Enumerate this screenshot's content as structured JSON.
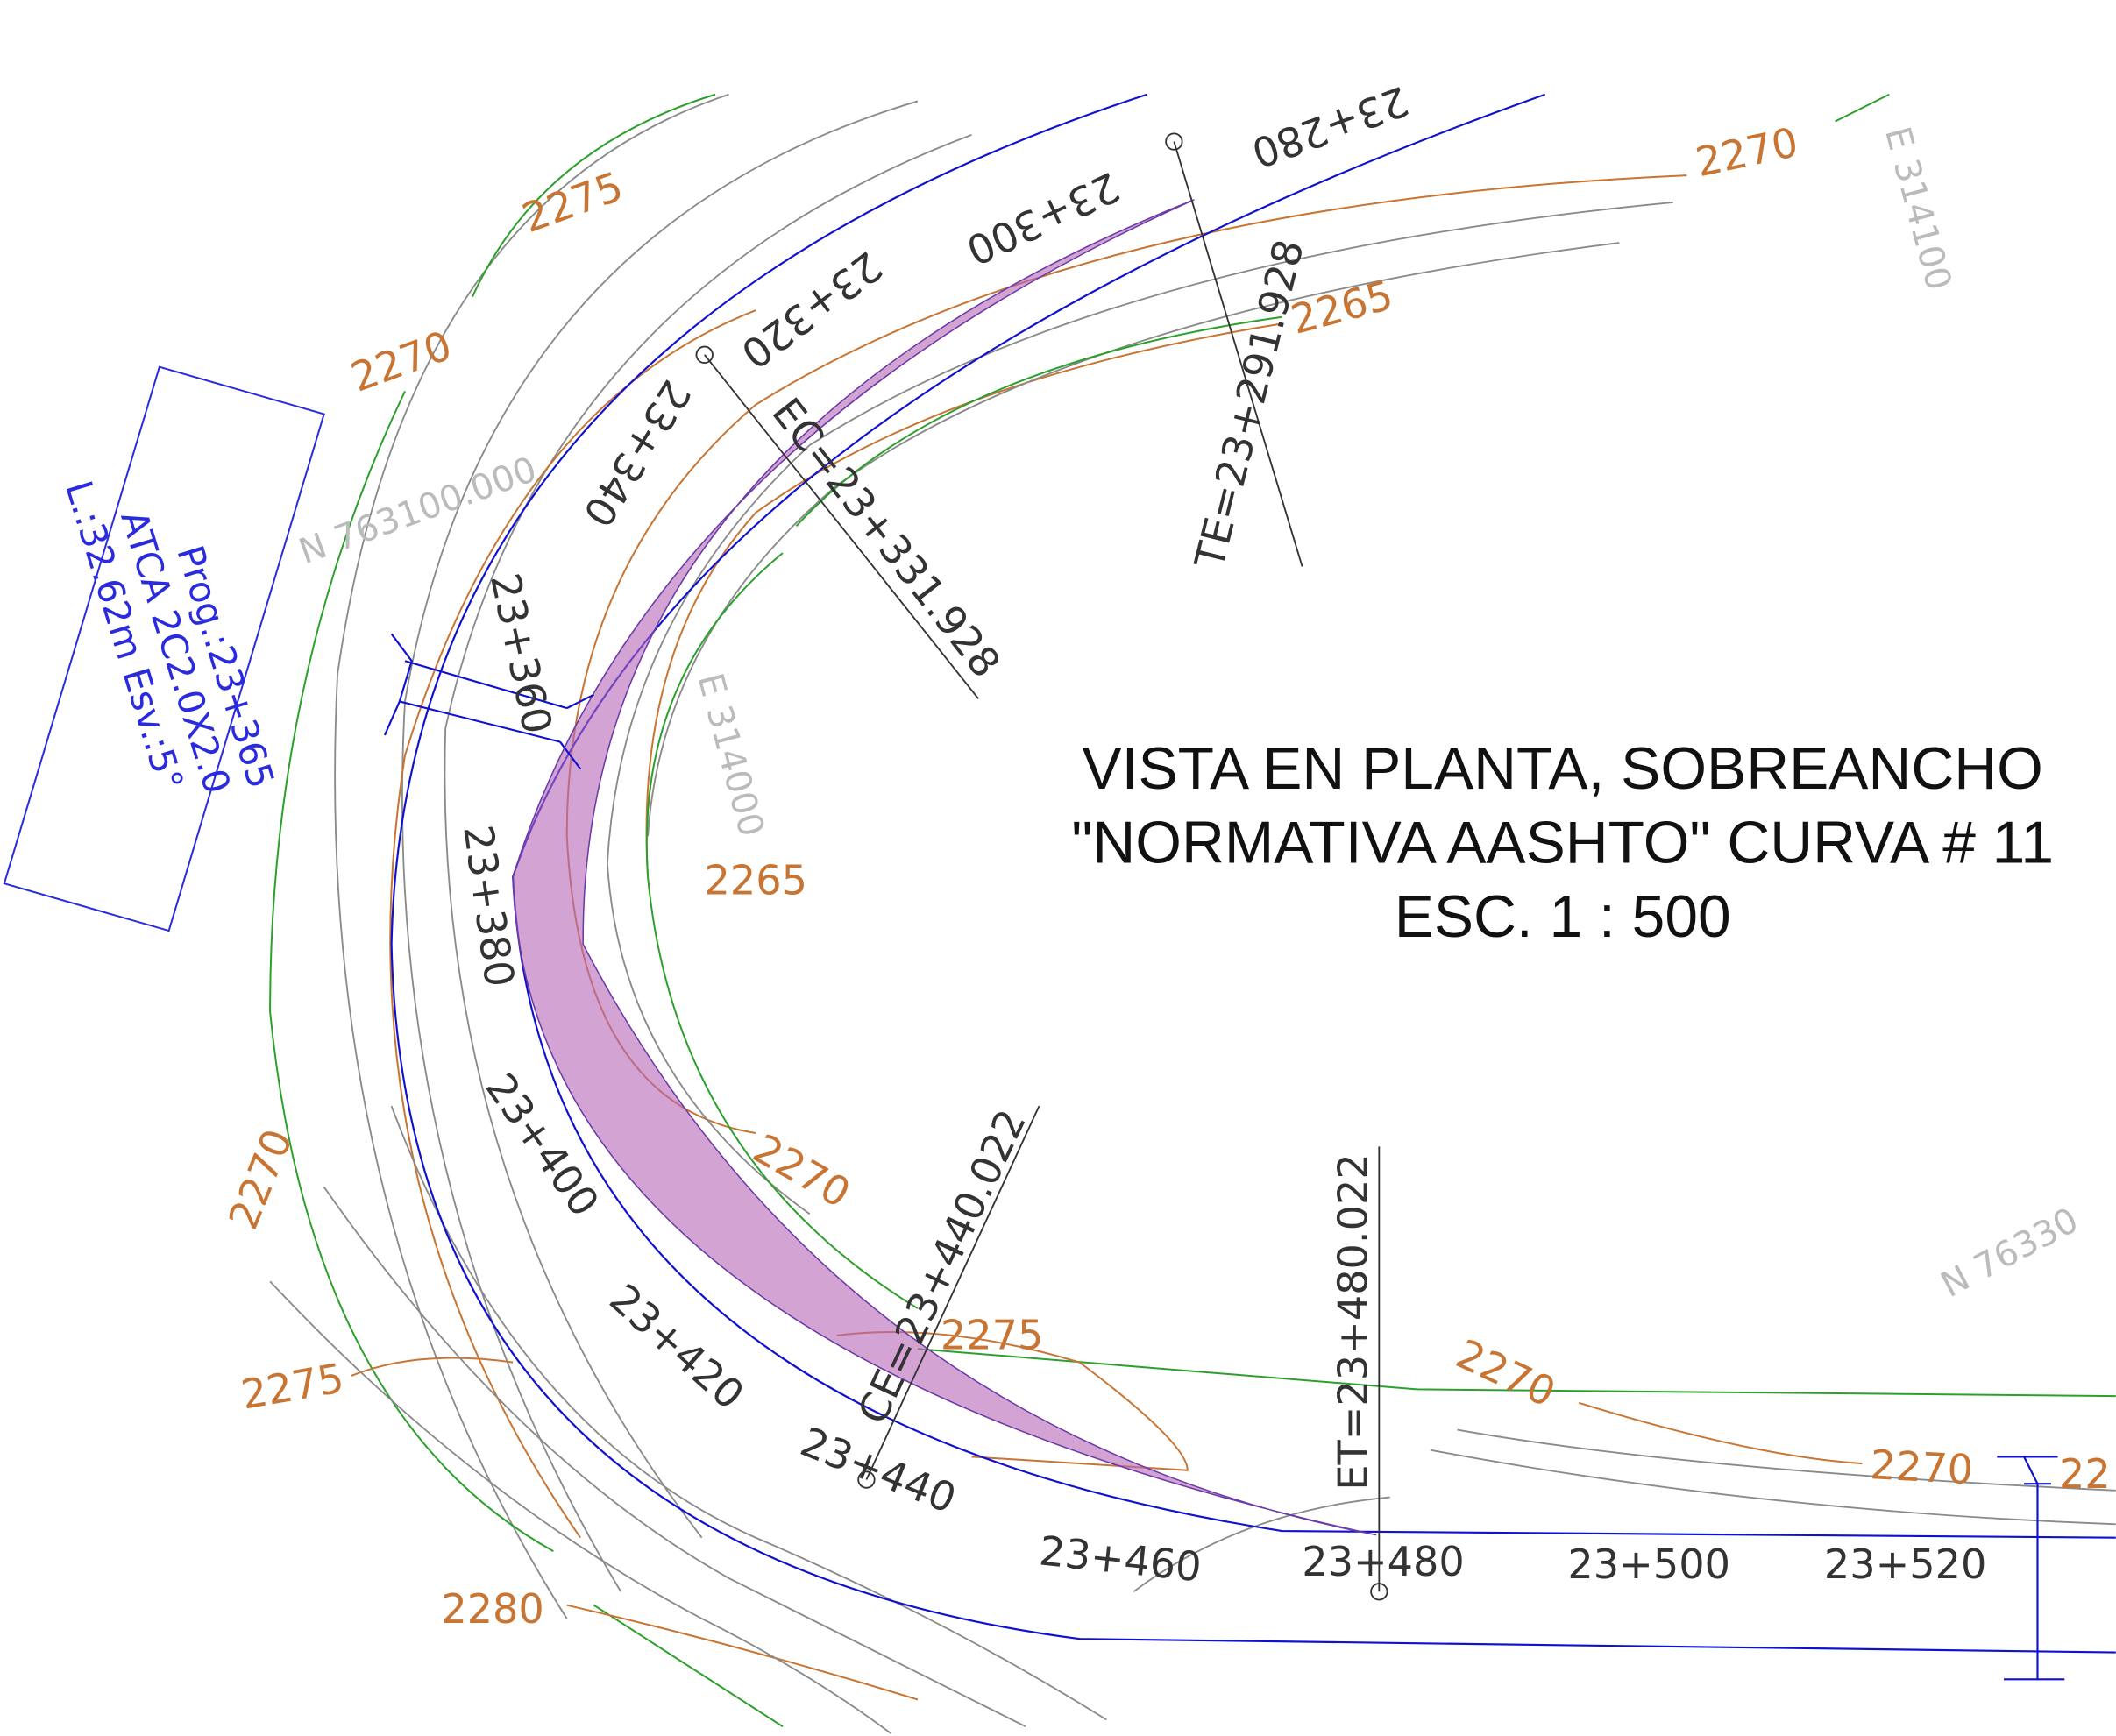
{
  "title": {
    "lines": [
      "VISTA EN PLANTA, SOBREANCHO",
      "\"NORMATIVA AASHTO\"  CURVA # 11",
      "ESC. 1 : 500"
    ]
  },
  "culvert_box": {
    "lines": [
      "Prog.:23+365",
      "ATCA 2C2.0X2.0",
      "L.:32.62m Esv.:5°"
    ]
  },
  "stations": [
    "23+280",
    "23+300",
    "23+320",
    "23+340",
    "23+360",
    "23+380",
    "23+400",
    "23+420",
    "23+440",
    "23+460",
    "23+480",
    "23+500",
    "23+520"
  ],
  "curve_points": [
    "TE=23+291.928",
    "EC=23+331.928",
    "CE=23+440.022",
    "ET=23+480.022"
  ],
  "contour_labels": [
    "2275",
    "2270",
    "2270",
    "2265",
    "2265",
    "2270",
    "2270",
    "2275",
    "2270",
    "2275",
    "2270",
    "2280",
    "22"
  ],
  "grid_labels": [
    "N 763100.000",
    "E 314100",
    "E 314000",
    "N 76330"
  ]
}
